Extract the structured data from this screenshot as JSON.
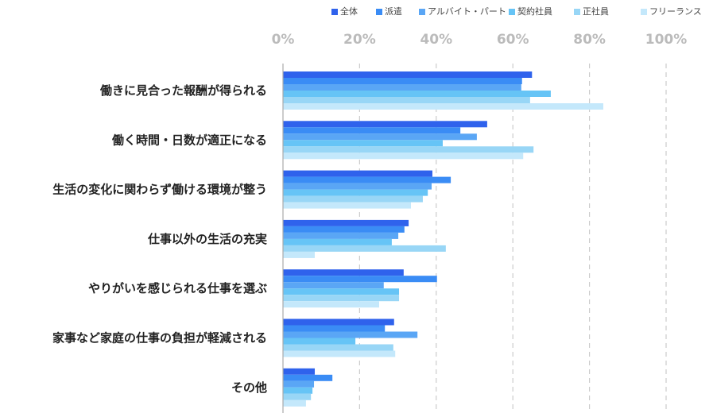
{
  "chart_data": {
    "type": "hbar",
    "categories": [
      "働きに見合った報酬が得られる",
      "働く時間・日数が適正になる",
      "生活の変化に関わらず働ける環境が整う",
      "仕事以外の生活の充実",
      "やりがいを感じられる仕事を選ぶ",
      "家事など家庭の仕事の負担が軽減される",
      "その他"
    ],
    "series": [
      {
        "name": "全体",
        "color": "#2f62ec",
        "values": [
          65,
          53.3,
          39,
          32.8,
          31.5,
          29,
          8.3
        ]
      },
      {
        "name": "派遣",
        "color": "#3a8cf5",
        "values": [
          62.4,
          46.3,
          43.8,
          31.7,
          40.2,
          26.6,
          12.9
        ]
      },
      {
        "name": "アルバイト・パート",
        "color": "#5aa6f5",
        "values": [
          62.2,
          50.6,
          38.8,
          30.1,
          26.3,
          35.1,
          8.1
        ]
      },
      {
        "name": "契約社員",
        "color": "#66c4f6",
        "values": [
          69.9,
          41.7,
          37.8,
          28.4,
          30.3,
          18.9,
          7.7
        ]
      },
      {
        "name": "正社員",
        "color": "#98d6f6",
        "values": [
          64.5,
          65.4,
          36.5,
          42.5,
          30.3,
          28.8,
          7.3
        ]
      },
      {
        "name": "フリーランス",
        "color": "#c4e8fb",
        "values": [
          83.6,
          62.7,
          33.4,
          8.3,
          25.1,
          29.3,
          6
        ]
      }
    ],
    "xlim": [
      0,
      100
    ],
    "xticks": [
      {
        "value": 0,
        "label": "0%"
      },
      {
        "value": 20,
        "label": "20%"
      },
      {
        "value": 40,
        "label": "40%"
      },
      {
        "value": 60,
        "label": "60%"
      },
      {
        "value": 80,
        "label": "80%"
      },
      {
        "value": 100,
        "label": "100%"
      }
    ],
    "grid": true,
    "legend": "top-right"
  }
}
